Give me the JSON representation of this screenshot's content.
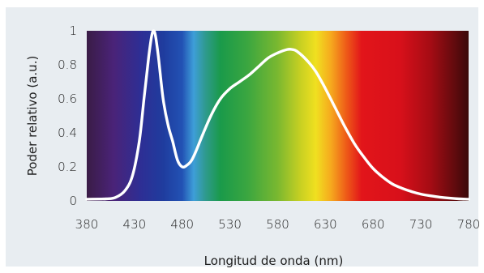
{
  "chart_data": {
    "type": "line",
    "xlabel": "Longitud de onda (nm)",
    "ylabel": "Poder relativo (a.u.)",
    "xlim": [
      380,
      780
    ],
    "ylim": [
      0,
      1
    ],
    "x_ticks": [
      "380",
      "430",
      "480",
      "530",
      "580",
      "630",
      "680",
      "730",
      "780"
    ],
    "y_ticks": [
      "0",
      "0.2",
      "0.4",
      "0.6",
      "0.8",
      "1"
    ],
    "grid": false,
    "background": "visible-spectrum gradient",
    "line_color": "#ffffff",
    "series": [
      {
        "x": [
          380,
          400,
          410,
          420,
          428,
          435,
          440,
          445,
          448,
          450,
          452,
          455,
          460,
          465,
          470,
          475,
          480,
          485,
          490,
          495,
          500,
          510,
          520,
          530,
          540,
          550,
          560,
          570,
          580,
          590,
          595,
          600,
          610,
          620,
          630,
          640,
          650,
          660,
          670,
          680,
          690,
          700,
          710,
          720,
          730,
          740,
          750,
          760,
          770,
          780
        ],
        "values": [
          0.01,
          0.012,
          0.02,
          0.06,
          0.15,
          0.35,
          0.6,
          0.85,
          0.97,
          1.0,
          0.97,
          0.85,
          0.6,
          0.45,
          0.35,
          0.24,
          0.2,
          0.21,
          0.24,
          0.3,
          0.37,
          0.5,
          0.6,
          0.66,
          0.7,
          0.74,
          0.79,
          0.84,
          0.87,
          0.89,
          0.89,
          0.88,
          0.83,
          0.76,
          0.66,
          0.55,
          0.44,
          0.34,
          0.26,
          0.19,
          0.14,
          0.1,
          0.075,
          0.055,
          0.04,
          0.03,
          0.022,
          0.016,
          0.012,
          0.01
        ]
      }
    ]
  }
}
